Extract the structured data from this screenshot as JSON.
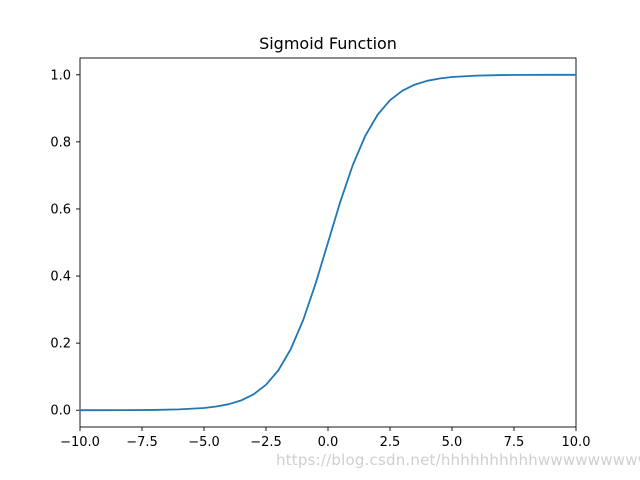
{
  "chart_data": {
    "type": "line",
    "title": "Sigmoid Function",
    "xlabel": "",
    "ylabel": "",
    "xlim": [
      -10,
      10
    ],
    "ylim": [
      -0.05,
      1.05
    ],
    "grid": false,
    "x_ticks": [
      -10,
      -7.5,
      -5,
      -2.5,
      0,
      2.5,
      5,
      7.5,
      10
    ],
    "x_tick_labels": [
      "−10.0",
      "−7.5",
      "−5.0",
      "−2.5",
      "0.0",
      "2.5",
      "5.0",
      "7.5",
      "10.0"
    ],
    "y_ticks": [
      0,
      0.2,
      0.4,
      0.6,
      0.8,
      1.0
    ],
    "y_tick_labels": [
      "0.0",
      "0.2",
      "0.4",
      "0.6",
      "0.8",
      "1.0"
    ],
    "line_color": "#1f77b4",
    "series": [
      {
        "x": [
          -10,
          -9,
          -8,
          -7,
          -6,
          -5,
          -4.5,
          -4,
          -3.5,
          -3,
          -2.5,
          -2,
          -1.5,
          -1,
          -0.5,
          0,
          0.5,
          1,
          1.5,
          2,
          2.5,
          3,
          3.5,
          4,
          4.5,
          5,
          6,
          7,
          8,
          9,
          10
        ],
        "values": [
          4.54e-05,
          0.0001234,
          0.0003354,
          0.0009111,
          0.0024726,
          0.0066929,
          0.0109869,
          0.0179862,
          0.0293122,
          0.0474259,
          0.0758582,
          0.1192029,
          0.1824255,
          0.2689414,
          0.3775407,
          0.5,
          0.6224593,
          0.7310586,
          0.8175745,
          0.8807971,
          0.9241418,
          0.9525741,
          0.9706878,
          0.9820138,
          0.9890131,
          0.9933071,
          0.9975274,
          0.9990889,
          0.9996646,
          0.9998766,
          0.9999546
        ]
      }
    ]
  },
  "watermark": "https://blog.csdn.net/hhhhhhhhhhwwwwwwwwww"
}
